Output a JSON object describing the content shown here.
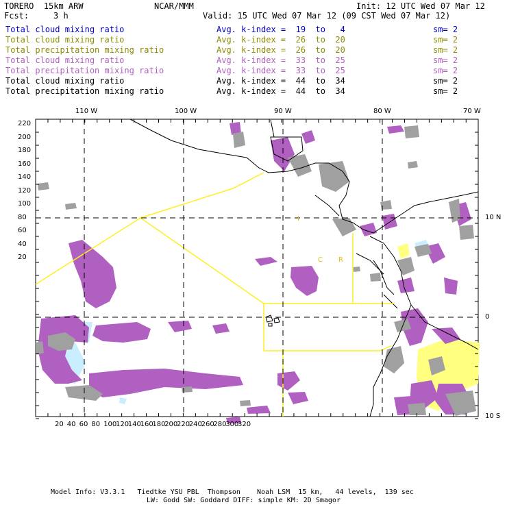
{
  "header": {
    "model": "TORERO  15km ARW",
    "org": "NCAR/MMM",
    "init": "Init: 12 UTC Wed 07 Mar 12",
    "fcst_label": "Fcst:",
    "fcst_value": "3 h",
    "valid": "Valid: 15 UTC Wed 07 Mar 12 (09 CST Wed 07 Mar 12)"
  },
  "legend": [
    {
      "field": "Total cloud mixing ratio",
      "kindex": "Avg. k-index =  19  to   4",
      "sm": "sm= 2",
      "color": "#0000cc"
    },
    {
      "field": "Total cloud mixing ratio",
      "kindex": "Avg. k-index =  26  to  20",
      "sm": "sm= 2",
      "color": "#8c8c00"
    },
    {
      "field": "Total precipitation mixing ratio",
      "kindex": "Avg. k-index =  26  to  20",
      "sm": "sm= 2",
      "color": "#8c8c00"
    },
    {
      "field": "Total cloud mixing ratio",
      "kindex": "Avg. k-index =  33  to  25",
      "sm": "sm= 2",
      "color": "#b060c0"
    },
    {
      "field": "Total precipitation mixing ratio",
      "kindex": "Avg. k-index =  33  to  25",
      "sm": "sm= 2",
      "color": "#b060c0"
    },
    {
      "field": "Total cloud mixing ratio",
      "kindex": "Avg. k-index =  44  to  34",
      "sm": "sm= 2",
      "color": "#000000"
    },
    {
      "field": "Total precipitation mixing ratio",
      "kindex": "Avg. k-index =  44  to  34",
      "sm": "sm= 2",
      "color": "#000000"
    }
  ],
  "axes": {
    "x_ticks": [
      "20",
      "40",
      "60",
      "80",
      "100",
      "120",
      "140",
      "160",
      "180",
      "200",
      "220",
      "240",
      "260",
      "280",
      "300",
      "320"
    ],
    "y_ticks": [
      "220",
      "200",
      "180",
      "160",
      "140",
      "120",
      "100",
      "80",
      "60",
      "40",
      "20"
    ],
    "lon_labels": [
      "110 W",
      "100 W",
      "90 W",
      "80 W",
      "70 W"
    ],
    "lat_labels": [
      "10 N",
      "0",
      "10 S"
    ]
  },
  "map_labels": {
    "i": "I",
    "c": "C",
    "r": "R"
  },
  "colors": {
    "cloud_gray": "#a0a0a0",
    "purple": "#b060c0",
    "yellow_region": "#ffff80",
    "light_blue": "#c8eeff",
    "boundary_yellow": "#ffee22"
  },
  "footer": {
    "line1": "Model Info: V3.3.1   Tiedtke YSU PBL  Thompson    Noah LSM  15 km,   44 levels,  139 sec",
    "line2": "LW: Godd SW: Goddard DIFF: simple KM: 2D Smagor"
  }
}
